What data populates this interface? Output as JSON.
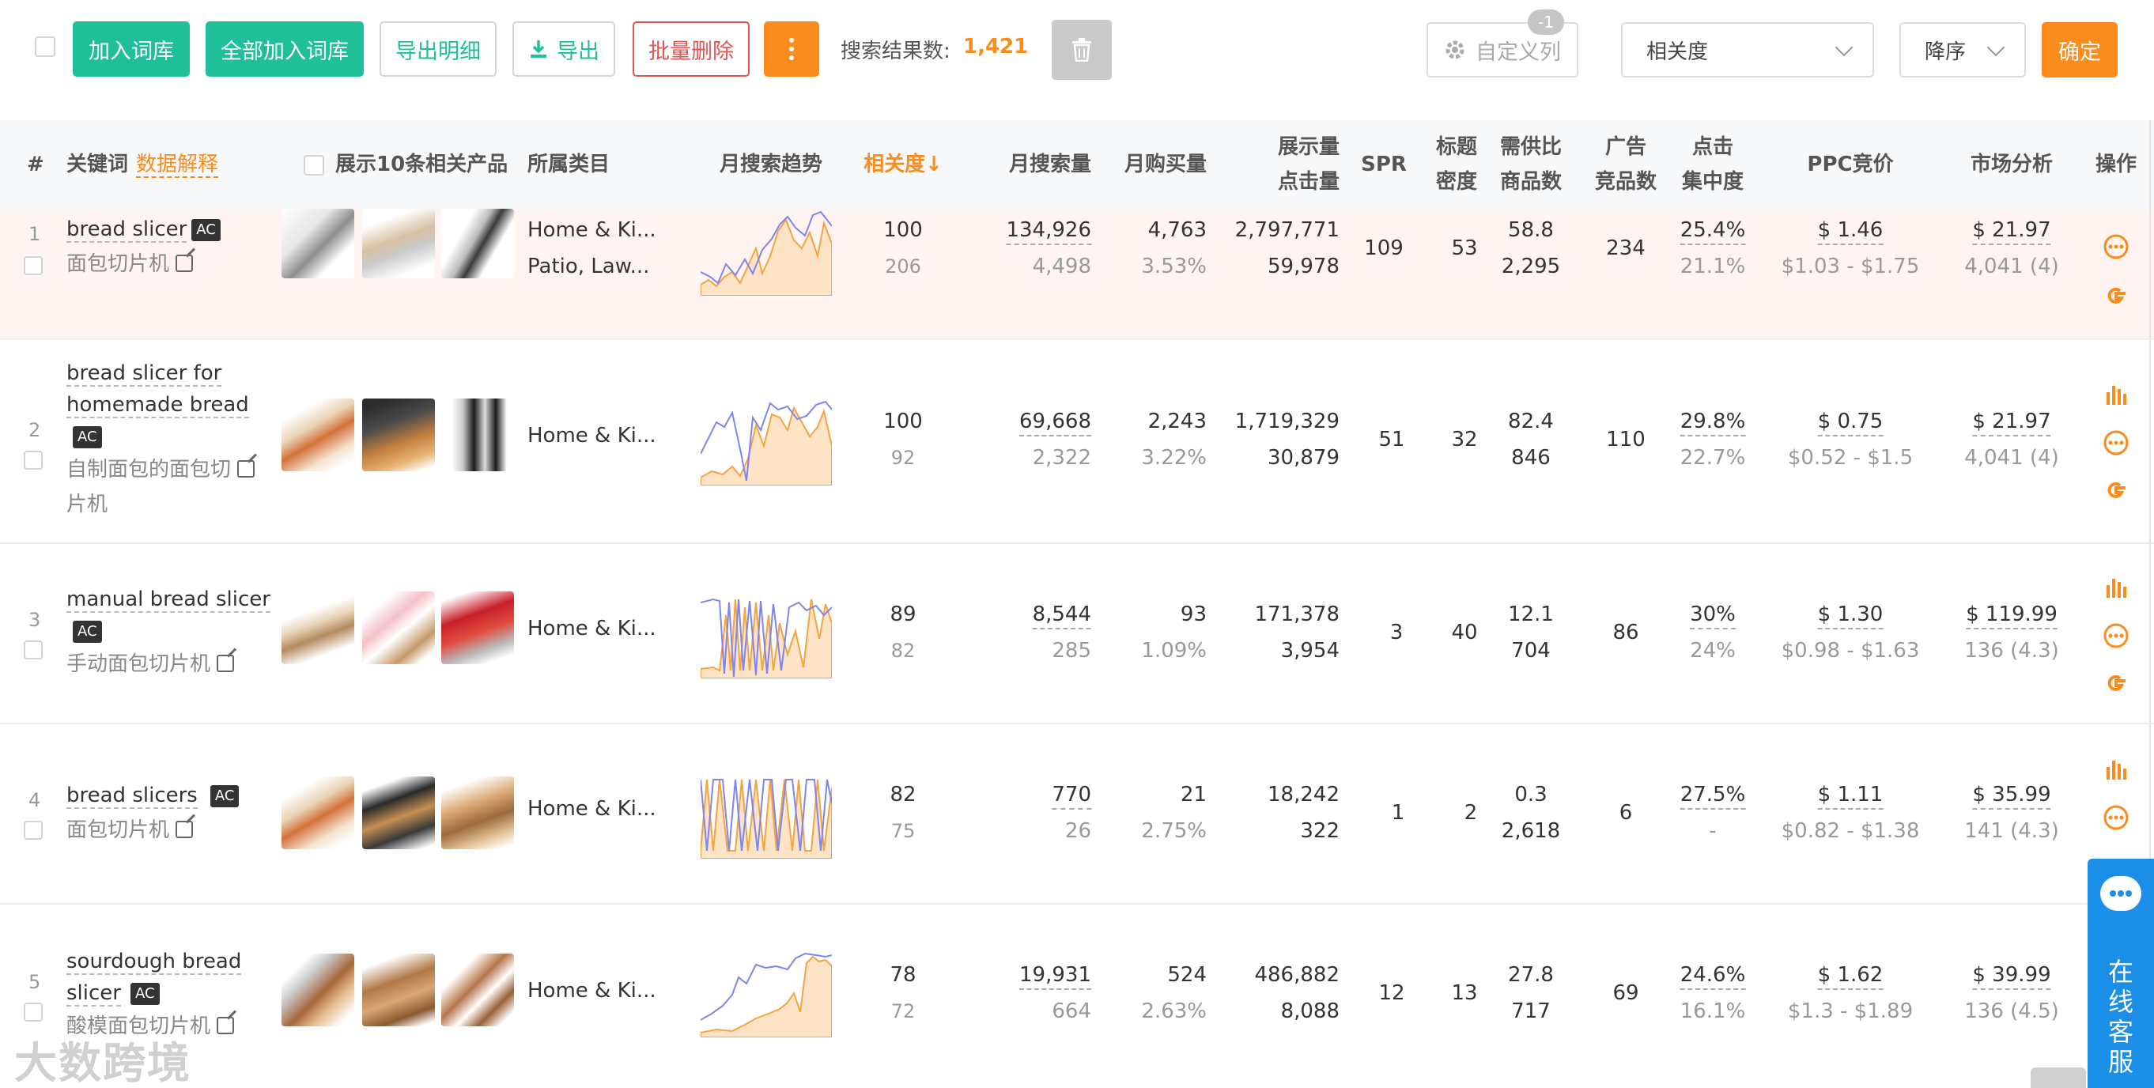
{
  "toolbar": {
    "add_to_lib": "加入词库",
    "add_all_to_lib": "全部加入词库",
    "export_detail": "导出明细",
    "export": "导出",
    "batch_delete": "批量删除",
    "result_label": "搜索结果数:",
    "result_count": "1,421",
    "custom_columns": "自定义列",
    "custom_columns_badge": "-1",
    "sort_field": "相关度",
    "sort_order": "降序",
    "confirm": "确定"
  },
  "header": {
    "index": "#",
    "keyword": "关键词",
    "data_explain": "数据解释",
    "show_products": "展示10条相关产品",
    "category": "所属类目",
    "trend": "月搜索趋势",
    "relevance": "相关度↓",
    "monthly_search": "月搜索量",
    "monthly_purchase": "月购买量",
    "impressions": "展示量",
    "clicks": "点击量",
    "spr": "SPR",
    "title_density_1": "标题",
    "title_density_2": "密度",
    "supply_demand": "需供比",
    "product_count": "商品数",
    "ad_1": "广告",
    "ad_2": "竞品数",
    "click_conc_1": "点击",
    "click_conc_2": "集中度",
    "ppc": "PPC竞价",
    "market": "市场分析",
    "ops": "操作"
  },
  "rows": [
    {
      "idx": "1",
      "kw": [
        "bread slicer"
      ],
      "cn": [
        "面包切片机"
      ],
      "cat1": "Home & Ki...",
      "cat2": "Patio, Law...",
      "rel": "100",
      "rel2": "206",
      "ms": "134,926",
      "ms2": "4,498",
      "mp": "4,763",
      "mp2": "3.53%",
      "imp": "2,797,771",
      "clk": "59,978",
      "spr": "109",
      "td": "53",
      "sd": "58.8",
      "pc": "2,295",
      "ad": "234",
      "cc": "25.4%",
      "cc2": "21.1%",
      "ppc": "$ 1.46",
      "ppc2": "$1.03 - $1.75",
      "mk": "$ 21.97",
      "mk2": "4,041 (4)"
    },
    {
      "idx": "2",
      "kw": [
        "bread slicer for",
        "homemade bread"
      ],
      "cn": [
        "自制面包的面包切",
        "片机"
      ],
      "cat1": "Home & Ki...",
      "cat2": "",
      "rel": "100",
      "rel2": "92",
      "ms": "69,668",
      "ms2": "2,322",
      "mp": "2,243",
      "mp2": "3.22%",
      "imp": "1,719,329",
      "clk": "30,879",
      "spr": "51",
      "td": "32",
      "sd": "82.4",
      "pc": "846",
      "ad": "110",
      "cc": "29.8%",
      "cc2": "22.7%",
      "ppc": "$ 0.75",
      "ppc2": "$0.52 - $1.5",
      "mk": "$ 21.97",
      "mk2": "4,041 (4)"
    },
    {
      "idx": "3",
      "kw": [
        "manual bread slicer"
      ],
      "cn": [
        "手动面包切片机"
      ],
      "cat1": "Home & Ki...",
      "cat2": "",
      "rel": "89",
      "rel2": "82",
      "ms": "8,544",
      "ms2": "285",
      "mp": "93",
      "mp2": "1.09%",
      "imp": "171,378",
      "clk": "3,954",
      "spr": "3",
      "td": "40",
      "sd": "12.1",
      "pc": "704",
      "ad": "86",
      "cc": "30%",
      "cc2": "24%",
      "ppc": "$ 1.30",
      "ppc2": "$0.98 - $1.63",
      "mk": "$ 119.99",
      "mk2": "136 (4.3)"
    },
    {
      "idx": "4",
      "kw": [
        "bread slicers"
      ],
      "cn": [
        "面包切片机"
      ],
      "cat1": "Home & Ki...",
      "cat2": "",
      "rel": "82",
      "rel2": "75",
      "ms": "770",
      "ms2": "26",
      "mp": "21",
      "mp2": "2.75%",
      "imp": "18,242",
      "clk": "322",
      "spr": "1",
      "td": "2",
      "sd": "0.3",
      "pc": "2,618",
      "ad": "6",
      "cc": "27.5%",
      "cc2": "-",
      "ppc": "$ 1.11",
      "ppc2": "$0.82 - $1.38",
      "mk": "$ 35.99",
      "mk2": "141 (4.3)"
    },
    {
      "idx": "5",
      "kw": [
        "sourdough bread",
        "slicer"
      ],
      "cn": [
        "酸模面包切片机"
      ],
      "cat1": "Home & Ki...",
      "cat2": "",
      "rel": "78",
      "rel2": "72",
      "ms": "19,931",
      "ms2": "664",
      "mp": "524",
      "mp2": "2.63%",
      "imp": "486,882",
      "clk": "8,088",
      "spr": "12",
      "td": "13",
      "sd": "27.8",
      "pc": "717",
      "ad": "69",
      "cc": "24.6%",
      "cc2": "16.1%",
      "ppc": "$ 1.62",
      "ppc2": "$1.3 - $1.89",
      "mk": "$ 39.99",
      "mk2": "136 (4.5)"
    }
  ],
  "chat": {
    "label": "在线客服"
  },
  "watermark": "大数跨境",
  "colors": {
    "green": "#1fbf9a",
    "orange": "#fa8c1e",
    "red": "#e35454",
    "blue": "#1b8fe8",
    "trend_search": "#7d85f0",
    "trend_purchase": "#f7a33d"
  }
}
